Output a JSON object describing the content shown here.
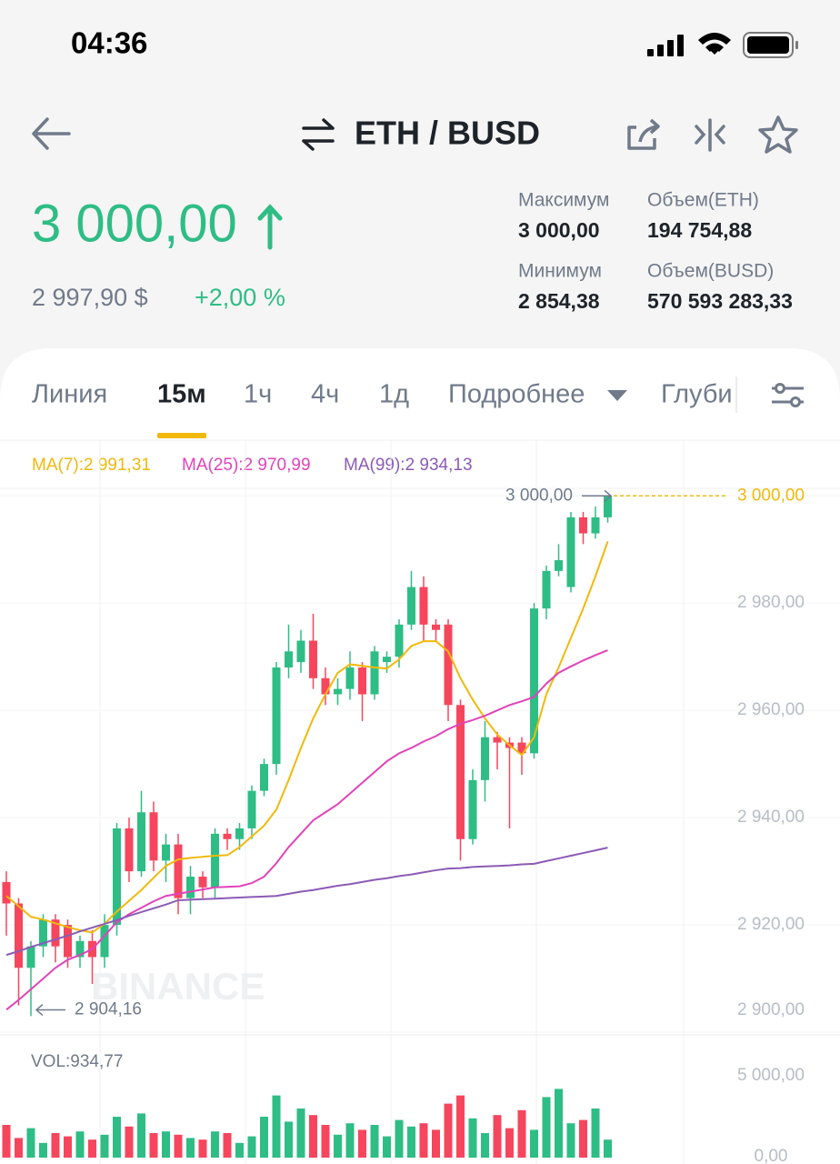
{
  "status": {
    "time": "04:36"
  },
  "header": {
    "pair": "ETH / BUSD"
  },
  "price": {
    "last": "3 000,00",
    "usd": "2 997,90 $",
    "change": "+2,00 %"
  },
  "stats": [
    {
      "label": "Максимум",
      "value": "3 000,00"
    },
    {
      "label": "Объем(ETH)",
      "value": "194 754,88"
    },
    {
      "label": "Минимум",
      "value": "2 854,38"
    },
    {
      "label": "Объем(BUSD)",
      "value": "570 593 283,33"
    }
  ],
  "tabs": [
    "Линия",
    "15м",
    "1ч",
    "4ч",
    "1д",
    "Подробнее",
    "Глуби"
  ],
  "chart_data": {
    "type": "candlestick",
    "watermark": "BINANCE",
    "up_color": "#2ebd85",
    "down_color": "#f6465d",
    "ylim": [
      2899.5,
      3001.4
    ],
    "yticks": [
      {
        "value": 3000,
        "label": "3 000,00"
      },
      {
        "value": 2980,
        "label": "2 980,00"
      },
      {
        "value": 2960,
        "label": "2 960,00"
      },
      {
        "value": 2940,
        "label": "2 940,00"
      },
      {
        "value": 2920,
        "label": "2 920,00"
      },
      {
        "value": 2900,
        "label": "2 900,00"
      }
    ],
    "last_price": {
      "value": 3000,
      "label": "3 000,00",
      "color": "#f0b90b"
    },
    "max_label": {
      "value": 3000,
      "label": "3 000,00"
    },
    "min_label": {
      "value": 2904.16,
      "label": "2 904,16"
    },
    "open": [
      2928,
      2924,
      2912,
      2916,
      2921,
      2920,
      2914,
      2917,
      2914,
      2920,
      2938,
      2930,
      2941,
      2932,
      2935,
      2925,
      2929,
      2927,
      2937,
      2936,
      2938,
      2945,
      2950,
      2968,
      2969,
      2973,
      2966,
      2963,
      2964,
      2968,
      2963,
      2969,
      2970,
      2976,
      2983,
      2976,
      2976,
      2961,
      2936,
      2947,
      2955,
      2954,
      2954,
      2952,
      2979,
      2986,
      2983,
      2996,
      2993,
      2996
    ],
    "high": [
      2930,
      2925,
      2917,
      2922,
      2922,
      2921,
      2918,
      2919,
      2922,
      2939,
      2940,
      2945,
      2943,
      2937,
      2937,
      2931,
      2930,
      2938,
      2938,
      2939,
      2946,
      2951,
      2969,
      2976,
      2975,
      2978,
      2968,
      2966,
      2971,
      2969,
      2972,
      2971,
      2977,
      2986,
      2985,
      2977,
      2977,
      2962,
      2949,
      2958,
      2956,
      2955,
      2955,
      2980,
      2987,
      2991,
      2997,
      2997,
      2998,
      3000
    ],
    "low": [
      2918,
      2905,
      2903,
      2914,
      2913,
      2912,
      2912,
      2909,
      2912,
      2918,
      2928,
      2929,
      2930,
      2928,
      2922,
      2922,
      2925,
      2925,
      2934,
      2934,
      2936,
      2944,
      2948,
      2966,
      2967,
      2964,
      2961,
      2961,
      2962,
      2958,
      2962,
      2967,
      2968,
      2975,
      2973,
      2973,
      2958,
      2932,
      2935,
      2943,
      2949,
      2938,
      2948,
      2951,
      2977,
      2985,
      2982,
      2991,
      2992,
      2995
    ],
    "close": [
      2924,
      2912,
      2916,
      2921,
      2916,
      2914,
      2917,
      2914,
      2920,
      2938,
      2930,
      2941,
      2932,
      2935,
      2925,
      2929,
      2927,
      2937,
      2936,
      2938,
      2945,
      2950,
      2968,
      2971,
      2973,
      2966,
      2963,
      2964,
      2968,
      2963,
      2971,
      2970,
      2976,
      2983,
      2976,
      2975,
      2961,
      2936,
      2947,
      2955,
      2954,
      2953,
      2952,
      2979,
      2986,
      2988,
      2996,
      2993,
      2996,
      3000
    ],
    "series": [
      {
        "label": "MA(7):2 991,31",
        "color": "#f0b90b",
        "values": [
          2925.4,
          2923.5,
          2921.5,
          2921,
          2920.3,
          2919.6,
          2919,
          2918.6,
          2920.2,
          2922.5,
          2924.5,
          2926.5,
          2928.8,
          2931,
          2932.2,
          2932.5,
          2932.7,
          2932.9,
          2933,
          2934.5,
          2936.5,
          2938.5,
          2941.5,
          2947,
          2953,
          2958.5,
          2963,
          2967,
          2968.6,
          2968.3,
          2968,
          2967.8,
          2969.5,
          2972,
          2972.9,
          2972.9,
          2971,
          2966,
          2962,
          2958.5,
          2955.5,
          2953.5,
          2951.7,
          2955,
          2963,
          2968,
          2973.5,
          2979,
          2985,
          2991.5
        ]
      },
      {
        "label": "MA(25):2 970,99",
        "color": "#e043b9",
        "values": [
          2904.2,
          2906,
          2908,
          2910,
          2912,
          2913.5,
          2914.4,
          2915.5,
          2918,
          2920.5,
          2922,
          2923.2,
          2924.4,
          2925.4,
          2925.8,
          2926.2,
          2926.6,
          2927,
          2927.1,
          2927.2,
          2927.8,
          2929,
          2931.5,
          2934.5,
          2937,
          2939.5,
          2941,
          2942.5,
          2944.5,
          2946.5,
          2948.5,
          2950.5,
          2952,
          2953,
          2954.2,
          2955.2,
          2956.5,
          2957.5,
          2958.2,
          2959,
          2960,
          2961,
          2961.7,
          2962.5,
          2965,
          2967,
          2968.2,
          2969.3,
          2970.3,
          2971.2
        ]
      },
      {
        "label": "MA(99):2 934,13",
        "color": "#8b5bb5",
        "values": [
          2914.4,
          2915.1,
          2915.9,
          2916.6,
          2917.3,
          2918,
          2918.8,
          2919.5,
          2920.2,
          2920.9,
          2921.7,
          2922.4,
          2923.1,
          2923.8,
          2924.6,
          2924.7,
          2924.8,
          2924.9,
          2925,
          2925.1,
          2925.2,
          2925.3,
          2925.4,
          2925.8,
          2926.2,
          2926.5,
          2926.9,
          2927.3,
          2927.6,
          2928,
          2928.4,
          2928.7,
          2929.1,
          2929.4,
          2929.8,
          2930.2,
          2930.5,
          2930.6,
          2930.8,
          2930.9,
          2931,
          2931.1,
          2931.3,
          2931.4,
          2931.9,
          2932.4,
          2932.9,
          2933.4,
          2933.9,
          2934.4
        ]
      }
    ],
    "volume_label": "VOL:934,77",
    "volume": [
      2000,
      1200,
      1800,
      900,
      1500,
      1300,
      1600,
      1100,
      1400,
      2500,
      1900,
      2700,
      1500,
      1600,
      1400,
      1200,
      1100,
      1600,
      1500,
      900,
      1300,
      2500,
      3800,
      2200,
      3000,
      2600,
      2000,
      1400,
      2100,
      1700,
      2000,
      1300,
      2300,
      1900,
      2100,
      1700,
      3300,
      3800,
      2400,
      1500,
      2600,
      1800,
      2900,
      1700,
      3700,
      4200,
      2100,
      2300,
      3000,
      1100
    ],
    "vlim": [
      0,
      7500
    ],
    "vticks": [
      {
        "value": 5000,
        "label": "5 000,00"
      },
      {
        "value": 0,
        "label": "0,00"
      }
    ]
  }
}
